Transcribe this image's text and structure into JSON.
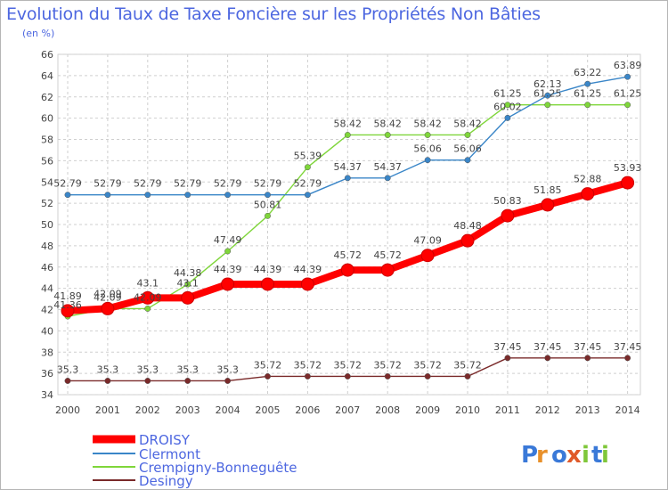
{
  "header": {
    "title": "Evolution du Taux de Taxe Foncière sur les Propriétés Non Bâties",
    "unit": "(en %)"
  },
  "logo": {
    "text": "Proxiti"
  },
  "colors": {
    "DROISY": "#ff0000",
    "Clermont": "#3a86c8",
    "Crempigny-Bonneguête": "#7fd63a",
    "Desingy": "#7a2a2a",
    "grid": "#cfcfcf",
    "text": "#444444",
    "legend": "#4d67e0"
  },
  "chart_data": {
    "type": "line",
    "title": "Evolution du Taux de Taxe Foncière sur les Propriétés Non Bâties",
    "ylabel": "(en %)",
    "x": [
      2000,
      2001,
      2002,
      2003,
      2004,
      2005,
      2006,
      2007,
      2008,
      2009,
      2010,
      2011,
      2012,
      2013,
      2014
    ],
    "ylim": [
      34,
      66
    ],
    "yticks": [
      34,
      36,
      38,
      40,
      42,
      44,
      46,
      48,
      50,
      52,
      54,
      56,
      58,
      60,
      62,
      64,
      66
    ],
    "grid": true,
    "legend_position": "bottom-left",
    "series": [
      {
        "name": "DROISY",
        "values": [
          41.89,
          42.09,
          43.1,
          43.1,
          44.39,
          44.39,
          44.39,
          45.72,
          45.72,
          47.09,
          48.48,
          50.83,
          51.85,
          52.88,
          53.93
        ],
        "labels": [
          "41.89",
          "42.09",
          "43.1",
          "43.1",
          "44.39",
          "44.39",
          "44.39",
          "45.72",
          "45.72",
          "47.09",
          "48.48",
          "50.83",
          "51.85",
          "52.88",
          "53.93"
        ]
      },
      {
        "name": "Clermont",
        "values": [
          52.79,
          52.79,
          52.79,
          52.79,
          52.79,
          52.79,
          52.79,
          54.37,
          54.37,
          56.06,
          56.06,
          60.02,
          62.13,
          63.22,
          63.89
        ],
        "labels": [
          "52.79",
          "52.79",
          "52.79",
          "52.79",
          "52.79",
          "52.79",
          "52.79",
          "54.37",
          "54.37",
          "56.06",
          "56.06",
          "60.02",
          "62.13",
          "63.22",
          "63.89"
        ]
      },
      {
        "name": "Crempigny-Bonneguête",
        "values": [
          41.36,
          42.09,
          42.09,
          44.38,
          47.49,
          50.81,
          55.39,
          58.42,
          58.42,
          58.42,
          58.42,
          61.25,
          61.25,
          61.25,
          61.25
        ],
        "labels": [
          "41.36",
          "42.09",
          "42.09",
          "44.38",
          "47.49",
          "50.81",
          "55.39",
          "58.42",
          "58.42",
          "58.42",
          "58.42",
          "61.25",
          "61.25",
          "61.25",
          "61.25"
        ]
      },
      {
        "name": "Desingy",
        "values": [
          35.3,
          35.3,
          35.3,
          35.3,
          35.3,
          35.72,
          35.72,
          35.72,
          35.72,
          35.72,
          35.72,
          37.45,
          37.45,
          37.45,
          37.45
        ],
        "labels": [
          "35.3",
          "35.3",
          "35.3",
          "35.3",
          "35.3",
          "35.72",
          "35.72",
          "35.72",
          "35.72",
          "35.72",
          "35.72",
          "37.45",
          "37.45",
          "37.45",
          "37.45"
        ]
      }
    ]
  }
}
